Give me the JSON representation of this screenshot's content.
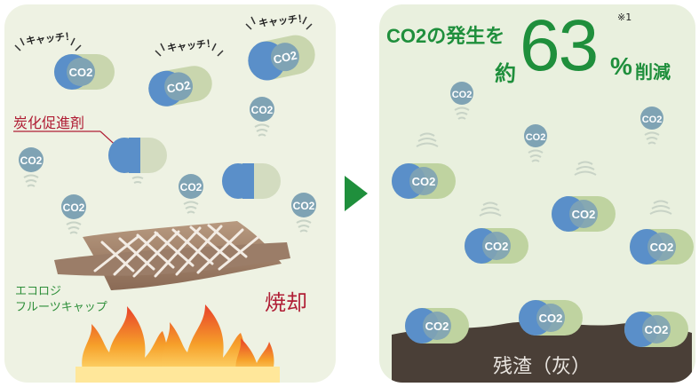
{
  "left": {
    "catch_1": "キャッチ！",
    "catch_2": "キャッチ！",
    "catch_3": "キャッチ！",
    "accelerator_label": "炭化促進剤",
    "product_label_line1": "エコロジ",
    "product_label_line2": "フルーツキャップ",
    "incineration_label": "焼却",
    "co2_badge": "CO2"
  },
  "right": {
    "headline_line1": "CO2の発生を",
    "headline_prefix": "約",
    "headline_number": "63",
    "headline_unit": "%",
    "headline_suffix": "削減",
    "footnote_mark": "※1",
    "residue_label": "残渣（灰）"
  },
  "colors": {
    "left_bg": "#eef2e3",
    "right_bg": "#e9f0de",
    "accent_green": "#1f8f3c",
    "label_red": "#b01e35",
    "label_green": "#2e8f3a",
    "capsule_blue": "#5a8fc9",
    "capsule_green": "#bfd3a0",
    "co2_badge": "#7fa3b4",
    "residue": "#4a3f37",
    "arrow": "#1f8f3c"
  },
  "icons": [
    "co2-bubble-icon",
    "capsule-icon",
    "flame-icon",
    "arrow-right-icon",
    "mesh-cap-icon"
  ]
}
